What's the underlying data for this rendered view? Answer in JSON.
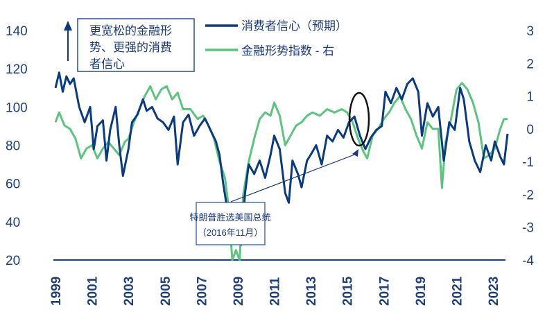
{
  "chart_data": {
    "type": "line",
    "title": "",
    "xlabel": "",
    "ylabel": "",
    "x_range": [
      1999,
      2023.9
    ],
    "x_ticks": [
      "1999",
      "2001",
      "2003",
      "2005",
      "2007",
      "2009",
      "2011",
      "2013",
      "2015",
      "2017",
      "2019",
      "2021",
      "2023"
    ],
    "y_left": {
      "range": [
        20,
        140
      ],
      "ticks": [
        "140",
        "120",
        "100",
        "80",
        "60",
        "40",
        "20"
      ]
    },
    "y_right": {
      "range": [
        -4,
        3
      ],
      "ticks": [
        "3",
        "2",
        "1",
        "0",
        "-1",
        "-2",
        "-3",
        "-4"
      ]
    },
    "grid": false,
    "legend_position": "top",
    "series": [
      {
        "name": "消费者信心（预期）",
        "axis": "left",
        "color": "#0a3a80",
        "x": [
          1999.0,
          1999.2,
          1999.4,
          1999.6,
          1999.8,
          2000.0,
          2000.3,
          2000.6,
          2000.9,
          2001.1,
          2001.3,
          2001.6,
          2001.8,
          2002.0,
          2002.3,
          2002.5,
          2002.7,
          2003.0,
          2003.2,
          2003.5,
          2003.8,
          2004.0,
          2004.3,
          2004.6,
          2004.9,
          2005.2,
          2005.5,
          2005.7,
          2006.0,
          2006.3,
          2006.6,
          2006.9,
          2007.2,
          2007.5,
          2007.8,
          2008.0,
          2008.2,
          2008.4,
          2008.6,
          2008.8,
          2009.0,
          2009.2,
          2009.4,
          2009.6,
          2009.9,
          2010.2,
          2010.5,
          2010.8,
          2011.0,
          2011.3,
          2011.6,
          2011.8,
          2012.0,
          2012.3,
          2012.5,
          2012.8,
          2013.0,
          2013.3,
          2013.6,
          2013.9,
          2014.2,
          2014.5,
          2014.8,
          2015.1,
          2015.4,
          2015.7,
          2016.0,
          2016.3,
          2016.6,
          2016.9,
          2017.1,
          2017.4,
          2017.7,
          2018.0,
          2018.3,
          2018.6,
          2018.9,
          2019.1,
          2019.4,
          2019.7,
          2020.0,
          2020.3,
          2020.6,
          2020.9,
          2021.2,
          2021.4,
          2021.7,
          2022.0,
          2022.3,
          2022.6,
          2022.9,
          2023.1,
          2023.4,
          2023.6,
          2023.8
        ],
        "y": [
          110,
          118,
          108,
          116,
          112,
          115,
          100,
          92,
          100,
          78,
          90,
          93,
          72,
          88,
          100,
          80,
          64,
          78,
          92,
          96,
          104,
          98,
          100,
          94,
          92,
          88,
          95,
          70,
          92,
          96,
          85,
          90,
          94,
          88,
          82,
          75,
          60,
          48,
          42,
          32,
          38,
          28,
          55,
          70,
          65,
          72,
          63,
          75,
          85,
          78,
          55,
          50,
          72,
          65,
          58,
          72,
          75,
          80,
          70,
          85,
          82,
          88,
          84,
          92,
          95,
          85,
          78,
          84,
          88,
          90,
          108,
          102,
          110,
          104,
          112,
          115,
          108,
          85,
          102,
          95,
          100,
          72,
          92,
          88,
          110,
          104,
          82,
          72,
          66,
          80,
          72,
          82,
          74,
          70,
          86
        ]
      },
      {
        "name": "金融形势指数 - 右",
        "axis": "right",
        "color": "#5cc47e",
        "x": [
          1999.0,
          1999.2,
          1999.5,
          1999.8,
          2000.1,
          2000.4,
          2000.7,
          2001.0,
          2001.3,
          2001.6,
          2001.9,
          2002.2,
          2002.5,
          2002.8,
          2003.0,
          2003.3,
          2003.6,
          2003.9,
          2004.2,
          2004.5,
          2004.8,
          2005.1,
          2005.4,
          2005.7,
          2006.0,
          2006.4,
          2006.8,
          2007.1,
          2007.4,
          2007.7,
          2008.0,
          2008.3,
          2008.5,
          2008.7,
          2008.9,
          2009.1,
          2009.3,
          2009.6,
          2009.9,
          2010.2,
          2010.5,
          2010.8,
          2011.0,
          2011.3,
          2011.6,
          2011.9,
          2012.2,
          2012.5,
          2012.8,
          2013.1,
          2013.5,
          2013.9,
          2014.3,
          2014.7,
          2015.0,
          2015.3,
          2015.6,
          2015.9,
          2016.1,
          2016.4,
          2016.7,
          2017.0,
          2017.3,
          2017.6,
          2017.9,
          2018.2,
          2018.5,
          2018.8,
          2019.1,
          2019.4,
          2019.7,
          2020.0,
          2020.2,
          2020.4,
          2020.7,
          2021.0,
          2021.3,
          2021.6,
          2021.9,
          2022.2,
          2022.5,
          2022.8,
          2023.1,
          2023.4,
          2023.6,
          2023.8
        ],
        "y": [
          0.2,
          0.5,
          0.1,
          0.0,
          -0.3,
          -0.9,
          -0.6,
          -0.5,
          -0.9,
          -0.6,
          -0.4,
          -0.6,
          -0.8,
          -0.4,
          -0.3,
          0.2,
          0.6,
          1.0,
          1.3,
          0.9,
          1.2,
          1.3,
          0.9,
          1.1,
          0.6,
          0.6,
          0.3,
          0.4,
          0.1,
          -0.3,
          -1.0,
          -1.5,
          -2.4,
          -4.0,
          -3.7,
          -4.0,
          -2.0,
          -1.0,
          -0.3,
          0.3,
          0.5,
          0.4,
          0.8,
          0.4,
          -0.5,
          -0.2,
          0.1,
          0.2,
          0.4,
          0.5,
          0.4,
          0.6,
          0.5,
          0.6,
          0.5,
          0.2,
          -0.3,
          -0.7,
          -0.9,
          -0.2,
          0.0,
          0.3,
          0.5,
          0.8,
          1.0,
          0.6,
          0.3,
          -0.2,
          -0.6,
          0.2,
          0.0,
          0.0,
          -1.8,
          -0.4,
          0.3,
          1.2,
          1.4,
          1.2,
          0.8,
          0.2,
          -0.9,
          -0.8,
          -0.6,
          0.0,
          0.3,
          0.3
        ]
      }
    ],
    "annotations": {
      "arrow_note": "更宽松的金融形势、更强的消费者信心",
      "event": "特朗普胜选美国总统（2016年11月）"
    }
  },
  "legend": [
    "消费者信心（预期）",
    "金融形势指数 - 右"
  ],
  "note_lines": [
    "更宽松的金融形",
    "势、更强的消费",
    "者信心"
  ],
  "event_lines": [
    "特朗普胜选美国总统",
    "（2016年11月）"
  ]
}
